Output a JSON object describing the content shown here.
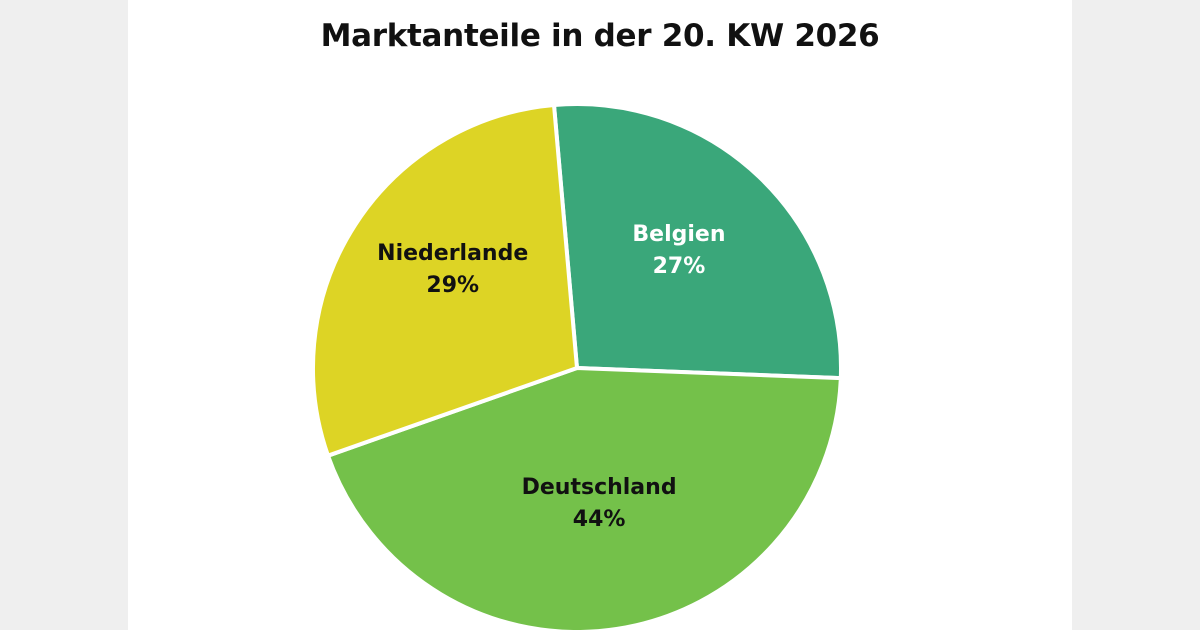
{
  "chart_data": {
    "type": "pie",
    "title": "Marktanteile in der 20. KW 2026",
    "slices": [
      {
        "label": "Belgien",
        "value": 27,
        "value_label": "27%",
        "color": "#3aa77a",
        "text_color": "#ffffff"
      },
      {
        "label": "Deutschland",
        "value": 44,
        "value_label": "44%",
        "color": "#74c14a",
        "text_color": "#111111"
      },
      {
        "label": "Niederlande",
        "value": 29,
        "value_label": "29%",
        "color": "#ddd425",
        "text_color": "#111111"
      }
    ],
    "start_angle_deg": -5,
    "direction": "clockwise",
    "legend": "none"
  }
}
